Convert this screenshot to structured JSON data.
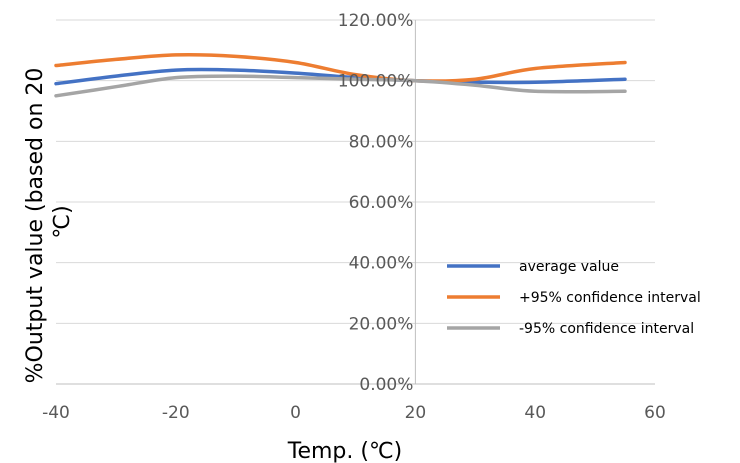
{
  "chart_data": {
    "type": "line",
    "xlabel": "Temp. (℃)",
    "ylabel": "%Output value (based on 20 ℃)",
    "ylabel_lines": [
      "%Output value (based on 20",
      "℃)"
    ],
    "xlim": [
      -40,
      60
    ],
    "ylim": [
      0,
      1.2
    ],
    "x_ticks": [
      -40,
      -20,
      0,
      20,
      40,
      60
    ],
    "x_tick_labels": [
      "-40",
      "-20",
      "0",
      "20",
      "40",
      "60"
    ],
    "y_ticks": [
      0,
      0.2,
      0.4,
      0.6,
      0.8,
      1.0,
      1.2
    ],
    "y_tick_labels": [
      "0.00%",
      "20.00%",
      "40.00%",
      "60.00%",
      "80.00%",
      "100.00%",
      "120.00%"
    ],
    "x_axis_crosses_at": 0,
    "y_axis_crosses_at": 20,
    "grid": "horizontal",
    "legend_position": "right",
    "series": [
      {
        "name": "average value",
        "color": "#4472C4",
        "x": [
          -40,
          -30,
          -20,
          -10,
          0,
          10,
          20,
          30,
          40,
          55
        ],
        "values": [
          0.99,
          1.015,
          1.035,
          1.035,
          1.025,
          1.01,
          1.0,
          0.995,
          0.995,
          1.005
        ]
      },
      {
        "name": "+95% confidence interval",
        "color": "#ED7D31",
        "x": [
          -40,
          -30,
          -20,
          -10,
          0,
          10,
          20,
          30,
          40,
          55
        ],
        "values": [
          1.05,
          1.07,
          1.085,
          1.08,
          1.06,
          1.02,
          1.0,
          1.005,
          1.04,
          1.06
        ]
      },
      {
        "name": "-95% confidence interval",
        "color": "#A5A5A5",
        "x": [
          -40,
          -30,
          -20,
          -10,
          0,
          10,
          20,
          30,
          40,
          55
        ],
        "values": [
          0.95,
          0.98,
          1.01,
          1.015,
          1.01,
          1.005,
          1.0,
          0.985,
          0.965,
          0.965
        ]
      }
    ]
  }
}
